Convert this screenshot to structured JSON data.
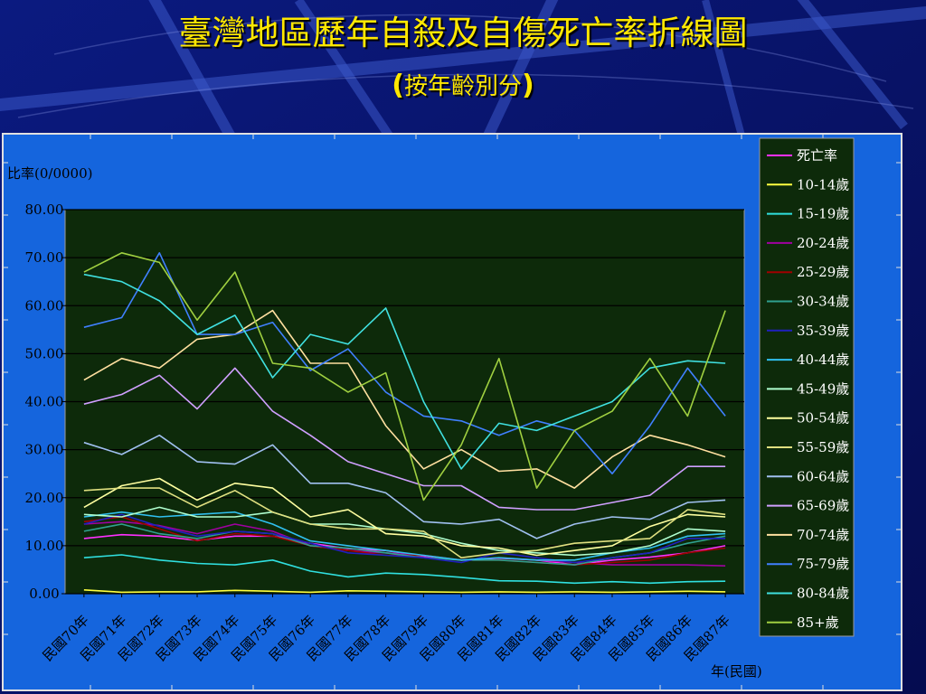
{
  "title": "臺灣地區歷年自殺及自傷死亡率折線圖",
  "subtitle": {
    "open": "(",
    "text": "按年齡別分",
    "close": ")"
  },
  "chart_data": {
    "type": "line",
    "ylabel": "比率(0/0000)",
    "xlabel": "年(民國)",
    "ylim": [
      0,
      80
    ],
    "yticks": [
      "0.00",
      "10.00",
      "20.00",
      "30.00",
      "40.00",
      "50.00",
      "60.00",
      "70.00",
      "80.00"
    ],
    "grid": true,
    "legend_position": "right",
    "categories": [
      "民國70年",
      "民國71年",
      "民國72年",
      "民國73年",
      "民國74年",
      "民國75年",
      "民國76年",
      "民國77年",
      "民國78年",
      "民國79年",
      "民國80年",
      "民國81年",
      "民國82年",
      "民國83年",
      "民國84年",
      "民國85年",
      "民國86年",
      "民國87年"
    ],
    "series": [
      {
        "name": "死亡率",
        "color": "#ff30ff",
        "values": [
          11.5,
          12.3,
          12.0,
          11.1,
          12.0,
          12.0,
          10.5,
          9.4,
          9.0,
          7.8,
          7.0,
          7.4,
          7.0,
          6.0,
          7.0,
          7.6,
          8.5,
          10.0
        ]
      },
      {
        "name": "10-14歲",
        "color": "#ffff40",
        "values": [
          0.8,
          0.3,
          0.4,
          0.4,
          0.7,
          0.5,
          0.3,
          0.6,
          0.5,
          0.4,
          0.3,
          0.4,
          0.3,
          0.4,
          0.3,
          0.4,
          0.5,
          0.4
        ]
      },
      {
        "name": "15-19歲",
        "color": "#30e0e0",
        "values": [
          7.5,
          8.1,
          7.0,
          6.3,
          6.0,
          7.0,
          4.7,
          3.5,
          4.3,
          4.0,
          3.4,
          2.7,
          2.6,
          2.2,
          2.5,
          2.2,
          2.5,
          2.6
        ]
      },
      {
        "name": "20-24歲",
        "color": "#a000a0",
        "values": [
          14.5,
          15.0,
          14.2,
          12.5,
          14.5,
          13.0,
          10.0,
          9.0,
          8.5,
          8.0,
          7.0,
          7.5,
          7.0,
          6.5,
          6.0,
          6.0,
          6.0,
          5.8
        ]
      },
      {
        "name": "25-29歲",
        "color": "#a00000",
        "values": [
          15.0,
          16.0,
          13.5,
          11.0,
          12.5,
          12.0,
          10.0,
          9.0,
          8.0,
          8.0,
          7.0,
          7.0,
          6.5,
          6.0,
          6.5,
          7.0,
          8.5,
          9.5
        ]
      },
      {
        "name": "30-34歲",
        "color": "#30a090",
        "values": [
          13.0,
          14.5,
          12.5,
          11.5,
          13.0,
          12.5,
          10.0,
          9.5,
          8.5,
          7.5,
          7.0,
          7.0,
          6.5,
          6.0,
          7.5,
          8.5,
          10.5,
          12.0
        ]
      },
      {
        "name": "35-39歲",
        "color": "#2020c0",
        "values": [
          14.5,
          16.5,
          14.0,
          12.0,
          13.0,
          12.5,
          10.5,
          8.5,
          8.0,
          7.5,
          6.5,
          8.5,
          7.5,
          6.5,
          7.5,
          8.5,
          11.5,
          11.5
        ]
      },
      {
        "name": "40-44歲",
        "color": "#30c0f0",
        "values": [
          16.0,
          17.0,
          16.0,
          16.5,
          17.0,
          14.5,
          11.0,
          10.0,
          9.0,
          8.0,
          7.0,
          7.5,
          7.0,
          7.0,
          8.5,
          9.5,
          12.0,
          12.5
        ]
      },
      {
        "name": "45-49歲",
        "color": "#b0ffd0",
        "values": [
          16.5,
          16.0,
          18.0,
          16.0,
          16.0,
          17.0,
          14.5,
          14.5,
          13.5,
          12.5,
          10.5,
          9.0,
          8.5,
          8.0,
          8.5,
          10.0,
          13.5,
          13.0
        ]
      },
      {
        "name": "50-54歲",
        "color": "#ffffa0",
        "values": [
          18.0,
          22.5,
          24.0,
          19.5,
          23.0,
          22.0,
          16.0,
          17.5,
          12.5,
          12.0,
          10.0,
          9.5,
          8.0,
          9.0,
          10.0,
          14.0,
          16.5,
          16.0
        ]
      },
      {
        "name": "55-59歲",
        "color": "#e0e080",
        "values": [
          21.5,
          22.0,
          22.0,
          18.0,
          21.5,
          17.0,
          14.5,
          13.5,
          13.5,
          13.0,
          7.5,
          8.5,
          9.0,
          10.5,
          11.0,
          11.5,
          17.5,
          16.5
        ]
      },
      {
        "name": "60-64歲",
        "color": "#a0c0f0",
        "values": [
          31.5,
          29.0,
          33.0,
          27.5,
          27.0,
          31.0,
          23.0,
          23.0,
          21.0,
          15.0,
          14.5,
          15.5,
          11.5,
          14.5,
          16.0,
          15.5,
          19.0,
          19.5
        ]
      },
      {
        "name": "65-69歲",
        "color": "#d0a0ff",
        "values": [
          39.5,
          41.5,
          45.5,
          38.5,
          47.0,
          38.0,
          33.0,
          27.5,
          25.0,
          22.5,
          22.5,
          18.0,
          17.5,
          17.5,
          19.0,
          20.5,
          26.5,
          26.5
        ]
      },
      {
        "name": "70-74歲",
        "color": "#ffe0a0",
        "values": [
          44.5,
          49.0,
          47.0,
          53.0,
          54.0,
          59.0,
          48.0,
          48.0,
          35.0,
          26.0,
          30.0,
          25.5,
          26.0,
          22.0,
          28.5,
          33.0,
          31.0,
          28.5
        ]
      },
      {
        "name": "75-79歲",
        "color": "#4080ff",
        "values": [
          55.5,
          57.5,
          71.0,
          54.0,
          54.0,
          56.5,
          46.5,
          51.0,
          42.0,
          37.0,
          36.0,
          33.0,
          36.0,
          34.0,
          25.0,
          35.0,
          47.0,
          37.0
        ]
      },
      {
        "name": "80-84歲",
        "color": "#40e0e0",
        "values": [
          66.5,
          65.0,
          61.0,
          54.0,
          58.0,
          45.0,
          54.0,
          52.0,
          59.5,
          40.0,
          26.0,
          35.5,
          34.0,
          37.0,
          40.0,
          47.0,
          48.5,
          48.0
        ]
      },
      {
        "name": "85+歲",
        "color": "#a0d040",
        "values": [
          67.0,
          71.0,
          69.0,
          57.0,
          67.0,
          48.0,
          47.0,
          42.0,
          46.0,
          19.5,
          31.0,
          49.0,
          22.0,
          34.0,
          38.0,
          49.0,
          37.0,
          59.0
        ]
      }
    ]
  }
}
